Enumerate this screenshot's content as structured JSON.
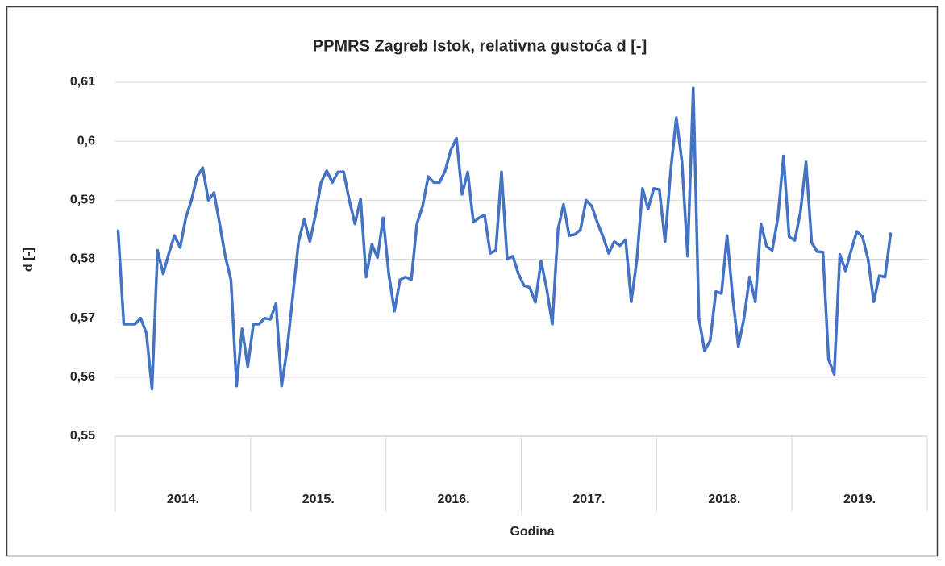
{
  "chart_data": {
    "type": "line",
    "title": "PPMRS Zagreb Istok, relativna gustoća d [-]",
    "x_label": "Godina",
    "y_label": "d [-]",
    "categories": [
      "2014.",
      "2015.",
      "2016.",
      "2017.",
      "2018.",
      "2019."
    ],
    "color": "#4472c4",
    "grid": true,
    "ylim": [
      0.55,
      0.61
    ],
    "yticks": [
      {
        "value": 0.55,
        "label": "0,55"
      },
      {
        "value": 0.56,
        "label": "0,56"
      },
      {
        "value": 0.57,
        "label": "0,57"
      },
      {
        "value": 0.58,
        "label": "0,58"
      },
      {
        "value": 0.59,
        "label": "0,59"
      },
      {
        "value": 0.6,
        "label": "0,6"
      },
      {
        "value": 0.61,
        "label": "0,61"
      }
    ],
    "values": [
      [
        0.5848,
        0.569,
        0.569,
        0.569,
        0.57,
        0.5675,
        0.558,
        0.5815,
        0.5775,
        0.581,
        0.584,
        0.582,
        0.587,
        0.59,
        0.594,
        0.5955,
        0.59,
        0.5913,
        0.586,
        0.5805,
        0.5765,
        0.5585,
        0.5682,
        0.5618
      ],
      [
        0.569,
        0.569,
        0.57,
        0.5698,
        0.5725,
        0.5585,
        0.565,
        0.574,
        0.583,
        0.5868,
        0.583,
        0.5875,
        0.593,
        0.595,
        0.593,
        0.5948,
        0.5948,
        0.59,
        0.586,
        0.5902,
        0.577,
        0.5825,
        0.5803,
        0.587
      ],
      [
        0.5775,
        0.5712,
        0.5765,
        0.577,
        0.5765,
        0.586,
        0.589,
        0.594,
        0.593,
        0.593,
        0.595,
        0.5985,
        0.6005,
        0.591,
        0.5948,
        0.5863,
        0.587,
        0.5875,
        0.581,
        0.5815,
        0.5948,
        0.58,
        0.5805,
        0.5775
      ],
      [
        0.5755,
        0.5752,
        0.5727,
        0.5797,
        0.575,
        0.569,
        0.585,
        0.5893,
        0.584,
        0.5842,
        0.585,
        0.59,
        0.589,
        0.5862,
        0.5838,
        0.581,
        0.583,
        0.5823,
        0.5833,
        0.5728,
        0.58,
        0.592,
        0.5885,
        0.592
      ],
      [
        0.5918,
        0.583,
        0.595,
        0.604,
        0.5965,
        0.5805,
        0.609,
        0.57,
        0.5645,
        0.5662,
        0.5745,
        0.5742,
        0.584,
        0.5735,
        0.5652,
        0.57,
        0.577,
        0.5728,
        0.586,
        0.5822,
        0.5815,
        0.587,
        0.5975,
        0.5838
      ],
      [
        0.5832,
        0.588,
        0.5965,
        0.5828,
        0.5813,
        0.5812,
        0.563,
        0.5605,
        0.5808,
        0.578,
        0.5815,
        0.5847,
        0.5838,
        0.58,
        0.5728,
        0.5772,
        0.577,
        0.5843
      ]
    ]
  }
}
